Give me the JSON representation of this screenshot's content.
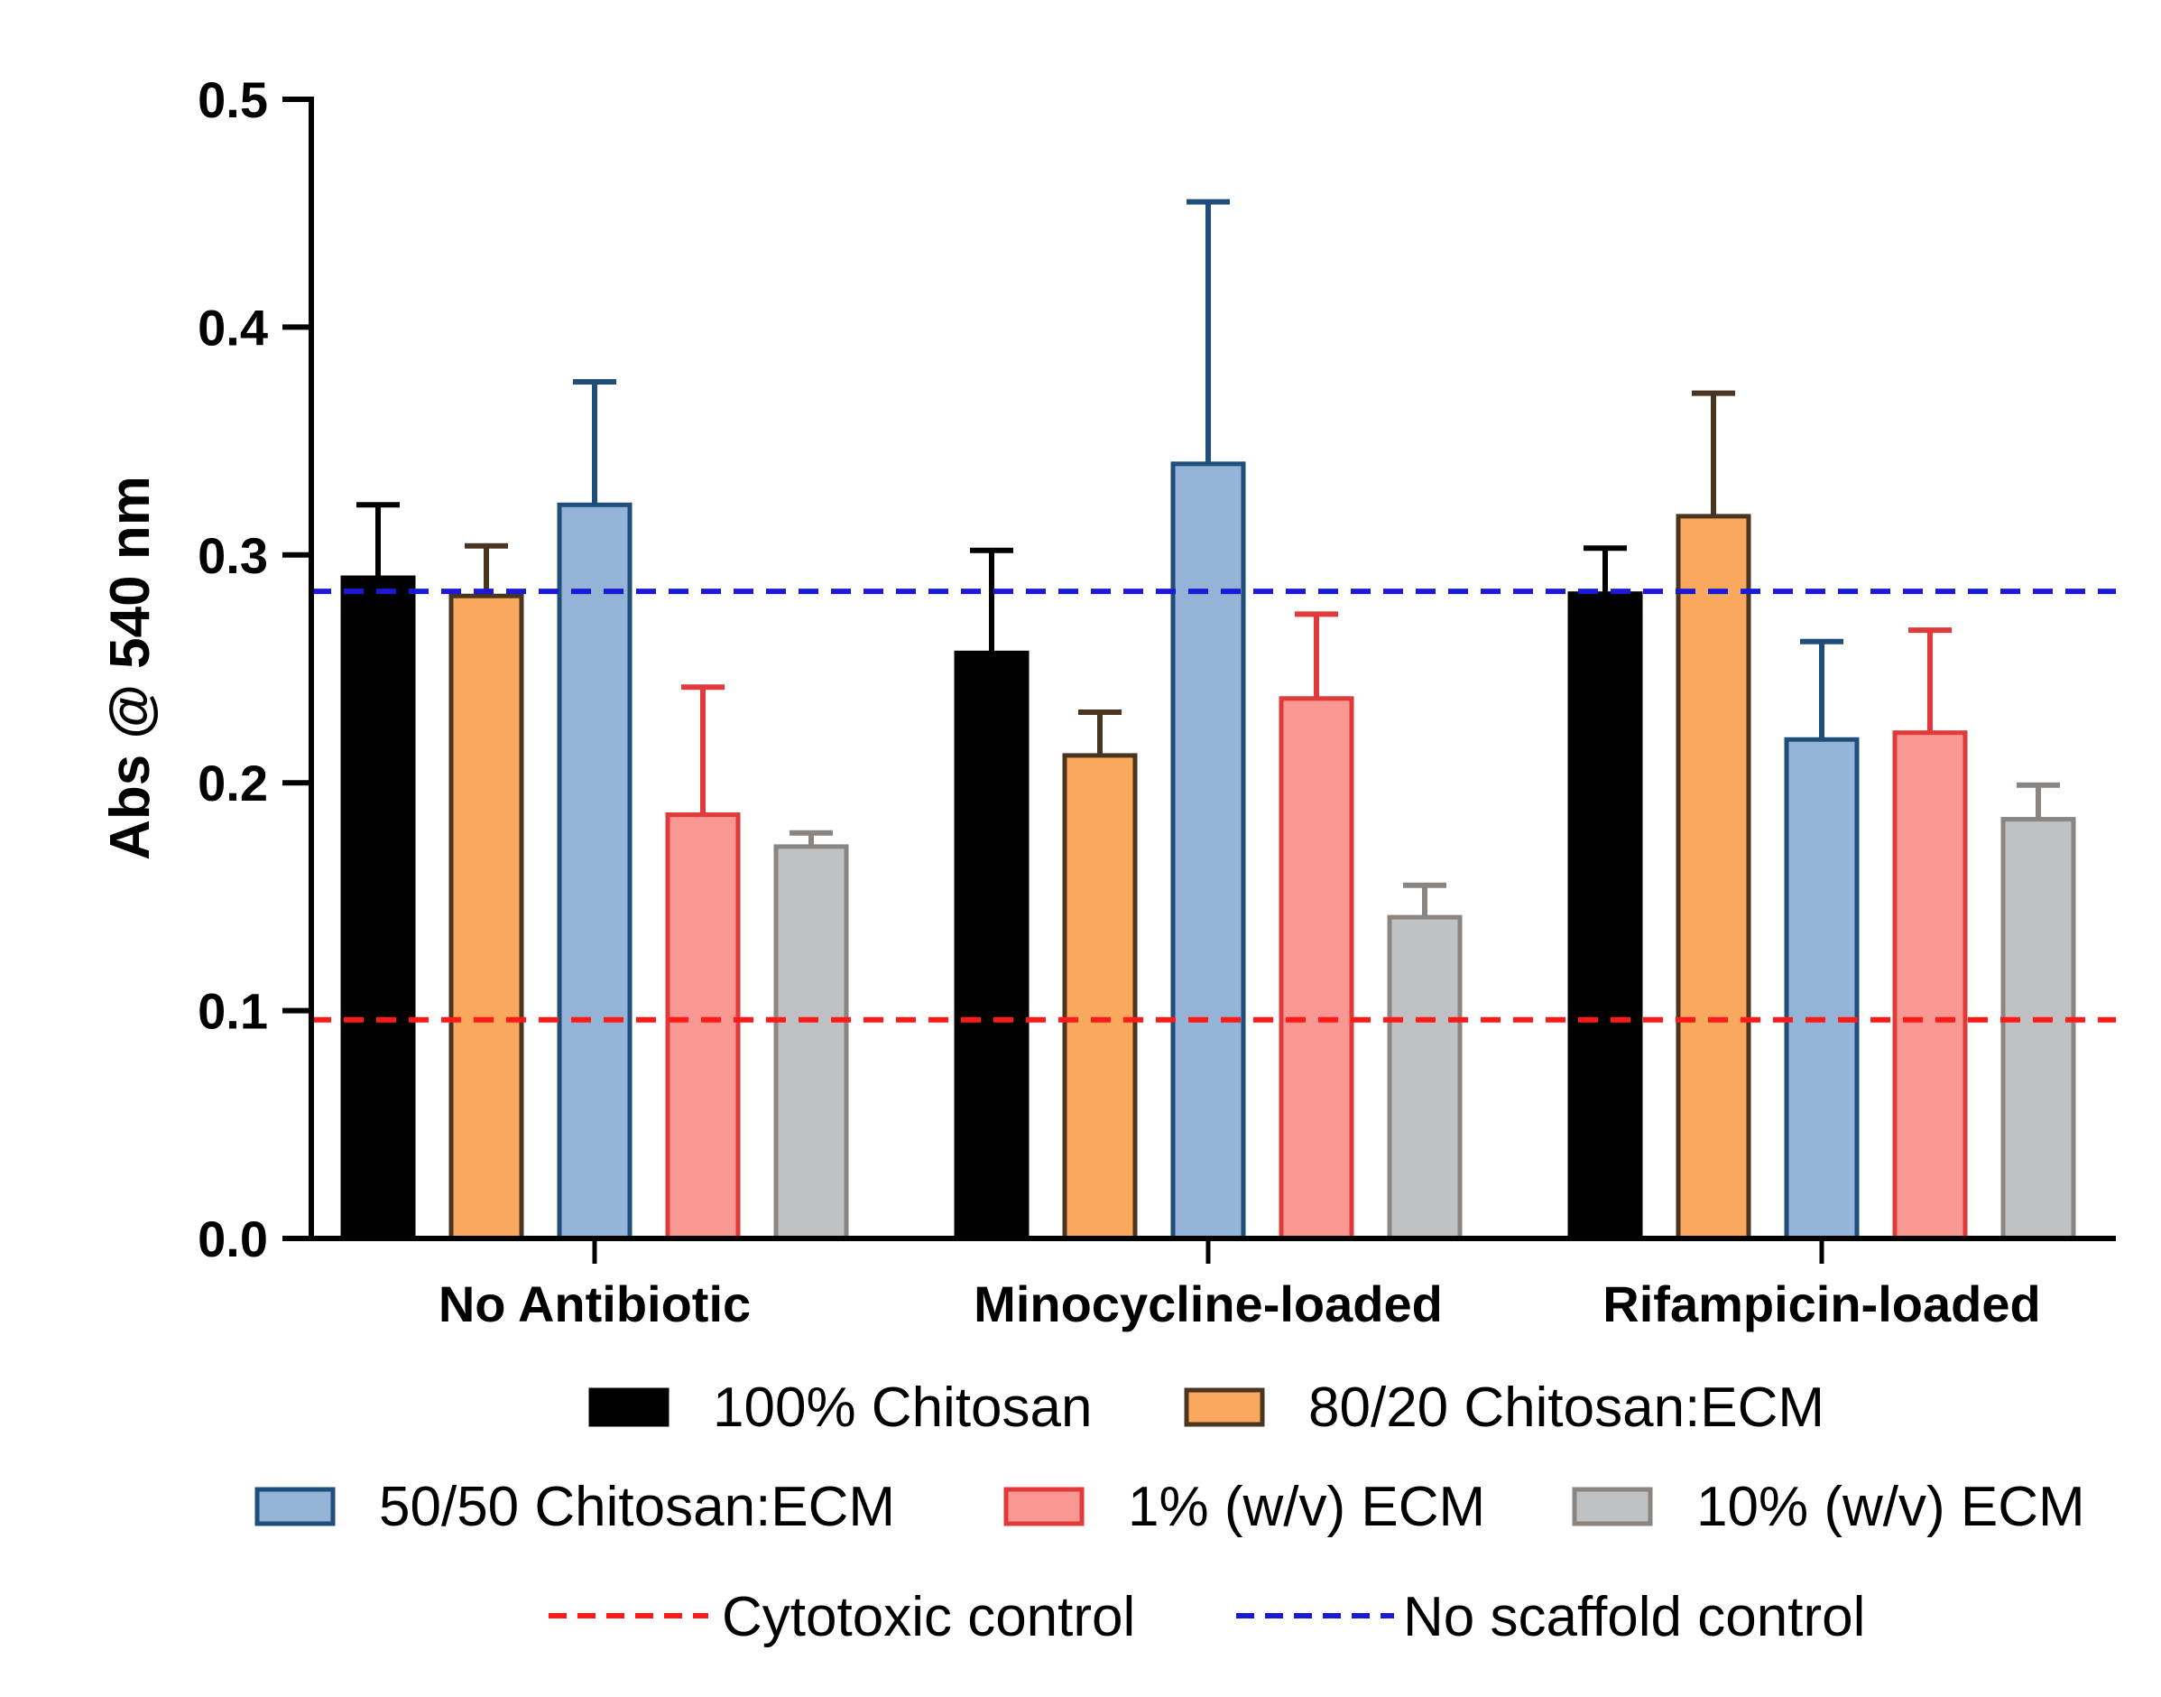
{
  "chart_data": {
    "type": "bar",
    "title": "",
    "xlabel": "",
    "ylabel": "Abs @ 540 nm",
    "ylim": [
      0,
      0.5
    ],
    "yticks": [
      "0.0",
      "0.1",
      "0.2",
      "0.3",
      "0.4",
      "0.5"
    ],
    "grid": false,
    "legend_position": "bottom",
    "categories": [
      "No Antibiotic",
      "Minocycline-loaded",
      "Rifampicin-loaded"
    ],
    "series": [
      {
        "name": "100% Chitosan",
        "fill": "#000000",
        "stroke": "#000000",
        "values": [
          0.29,
          0.257,
          0.283
        ],
        "errors": [
          0.032,
          0.045,
          0.02
        ]
      },
      {
        "name": "80/20 Chitosan:ECM",
        "fill": "#F9A85D",
        "stroke": "#4A3520",
        "values": [
          0.282,
          0.212,
          0.317
        ],
        "errors": [
          0.022,
          0.019,
          0.054
        ]
      },
      {
        "name": "50/50 Chitosan:ECM",
        "fill": "#93B4D6",
        "stroke": "#1F4E7A",
        "values": [
          0.322,
          0.34,
          0.219
        ],
        "errors": [
          0.054,
          0.115,
          0.043
        ]
      },
      {
        "name": "1% (w/v) ECM",
        "fill": "#F99893",
        "stroke": "#E03A3A",
        "values": [
          0.186,
          0.237,
          0.222
        ],
        "errors": [
          0.056,
          0.037,
          0.045
        ]
      },
      {
        "name": "10% (w/v) ECM",
        "fill": "#BFC1C3",
        "stroke": "#8A8580",
        "values": [
          0.172,
          0.141,
          0.184
        ],
        "errors": [
          0.006,
          0.014,
          0.015
        ]
      }
    ],
    "reference_lines": [
      {
        "name": "Cytotoxic control",
        "value": 0.096,
        "color": "#FF1A1A"
      },
      {
        "name": "No scaffold control",
        "value": 0.284,
        "color": "#1A1AD6"
      }
    ]
  }
}
